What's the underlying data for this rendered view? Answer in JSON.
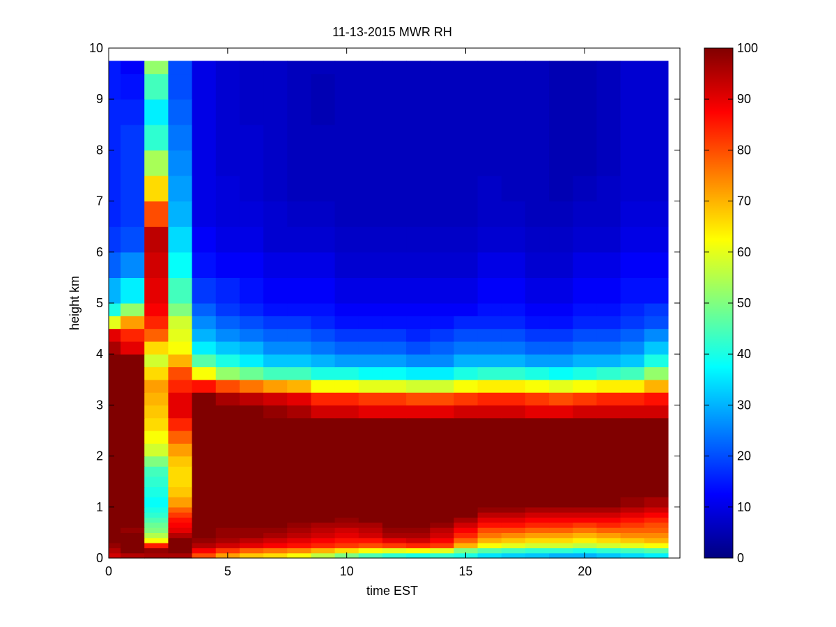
{
  "chart_data": {
    "type": "heatmap",
    "title": "11-13-2015 MWR RH",
    "xlabel": "time EST",
    "ylabel": "height km",
    "xlim": [
      0,
      24
    ],
    "ylim": [
      0,
      10
    ],
    "x_ticks": [
      0,
      5,
      10,
      15,
      20
    ],
    "y_ticks": [
      0,
      1,
      2,
      3,
      4,
      5,
      6,
      7,
      8,
      9,
      10
    ],
    "colorbar": {
      "colormap": "jet",
      "range": [
        0,
        100
      ],
      "ticks": [
        0,
        10,
        20,
        30,
        40,
        50,
        60,
        70,
        80,
        90,
        100
      ]
    },
    "x": [
      0,
      1,
      2,
      3,
      4,
      5,
      6,
      7,
      8,
      9,
      10,
      11,
      12,
      13,
      14,
      15,
      16,
      17,
      18,
      19,
      20,
      21,
      22,
      23
    ],
    "y_levels": [
      0,
      0.1,
      0.2,
      0.3,
      0.4,
      0.5,
      0.6,
      0.7,
      0.8,
      0.9,
      1.0,
      1.2,
      1.4,
      1.6,
      1.8,
      2.0,
      2.25,
      2.5,
      2.75,
      3.0,
      3.25,
      3.5,
      3.75,
      4.0,
      4.25,
      4.5,
      4.75,
      5.0,
      5.5,
      6.0,
      6.5,
      7.0,
      7.5,
      8.0,
      8.5,
      9.0,
      9.5
    ],
    "y_top": 9.75,
    "z": [
      [
        92,
        95,
        96,
        96,
        80,
        72,
        68,
        66,
        62,
        56,
        50,
        45,
        42,
        40,
        42,
        40,
        35,
        33,
        32,
        30,
        30,
        32,
        34,
        36
      ],
      [
        95,
        100,
        98,
        100,
        88,
        82,
        78,
        76,
        74,
        70,
        66,
        62,
        60,
        62,
        60,
        50,
        46,
        44,
        42,
        42,
        40,
        42,
        44,
        46
      ],
      [
        98,
        100,
        85,
        100,
        95,
        92,
        90,
        88,
        86,
        84,
        82,
        80,
        82,
        84,
        82,
        70,
        62,
        60,
        58,
        58,
        56,
        58,
        60,
        62
      ],
      [
        100,
        100,
        62,
        100,
        98,
        96,
        94,
        92,
        90,
        88,
        86,
        86,
        90,
        92,
        88,
        78,
        70,
        68,
        66,
        66,
        64,
        66,
        68,
        70
      ],
      [
        100,
        100,
        55,
        95,
        100,
        98,
        98,
        96,
        94,
        92,
        90,
        92,
        96,
        96,
        92,
        84,
        76,
        74,
        72,
        72,
        70,
        72,
        74,
        74
      ],
      [
        100,
        98,
        50,
        90,
        100,
        98,
        98,
        98,
        96,
        94,
        92,
        94,
        98,
        98,
        94,
        88,
        80,
        80,
        78,
        78,
        76,
        78,
        78,
        78
      ],
      [
        100,
        100,
        48,
        88,
        100,
        100,
        100,
        100,
        98,
        96,
        96,
        96,
        100,
        100,
        98,
        92,
        86,
        86,
        84,
        84,
        82,
        84,
        82,
        80
      ],
      [
        100,
        100,
        45,
        86,
        100,
        100,
        100,
        100,
        100,
        100,
        98,
        100,
        100,
        100,
        100,
        96,
        90,
        90,
        88,
        88,
        88,
        88,
        86,
        84
      ],
      [
        100,
        100,
        42,
        82,
        100,
        100,
        100,
        100,
        100,
        100,
        100,
        100,
        100,
        100,
        100,
        100,
        94,
        94,
        92,
        92,
        92,
        92,
        90,
        88
      ],
      [
        100,
        100,
        40,
        78,
        100,
        100,
        100,
        100,
        100,
        100,
        100,
        100,
        100,
        100,
        100,
        100,
        98,
        98,
        96,
        96,
        96,
        96,
        94,
        92
      ],
      [
        100,
        100,
        38,
        72,
        100,
        100,
        100,
        100,
        100,
        100,
        100,
        100,
        100,
        100,
        100,
        100,
        100,
        100,
        100,
        100,
        100,
        100,
        98,
        96
      ],
      [
        100,
        100,
        40,
        68,
        100,
        100,
        100,
        100,
        100,
        100,
        100,
        100,
        100,
        100,
        100,
        100,
        100,
        100,
        100,
        100,
        100,
        100,
        100,
        100
      ],
      [
        100,
        100,
        42,
        66,
        100,
        100,
        100,
        100,
        100,
        100,
        100,
        100,
        100,
        100,
        100,
        100,
        100,
        100,
        100,
        100,
        100,
        100,
        100,
        100
      ],
      [
        100,
        100,
        44,
        66,
        100,
        100,
        100,
        100,
        100,
        100,
        100,
        100,
        100,
        100,
        100,
        100,
        100,
        100,
        100,
        100,
        100,
        100,
        100,
        100
      ],
      [
        100,
        100,
        50,
        68,
        100,
        100,
        100,
        100,
        100,
        100,
        100,
        100,
        100,
        100,
        100,
        100,
        100,
        100,
        100,
        100,
        100,
        100,
        100,
        100
      ],
      [
        100,
        100,
        58,
        72,
        100,
        100,
        100,
        100,
        100,
        100,
        100,
        100,
        100,
        100,
        100,
        100,
        100,
        100,
        100,
        100,
        100,
        100,
        100,
        100
      ],
      [
        100,
        100,
        62,
        78,
        100,
        100,
        100,
        100,
        100,
        100,
        100,
        100,
        100,
        100,
        100,
        100,
        100,
        100,
        100,
        100,
        100,
        100,
        100,
        100
      ],
      [
        100,
        100,
        66,
        84,
        100,
        100,
        100,
        100,
        100,
        100,
        100,
        100,
        100,
        100,
        100,
        100,
        100,
        100,
        100,
        100,
        100,
        100,
        100,
        100
      ],
      [
        100,
        100,
        68,
        90,
        100,
        100,
        100,
        98,
        96,
        92,
        92,
        90,
        90,
        90,
        90,
        92,
        92,
        92,
        90,
        90,
        92,
        92,
        92,
        92
      ],
      [
        100,
        100,
        70,
        90,
        100,
        96,
        94,
        92,
        90,
        84,
        84,
        82,
        82,
        80,
        80,
        82,
        84,
        84,
        82,
        80,
        82,
        84,
        84,
        86
      ],
      [
        100,
        100,
        72,
        84,
        86,
        80,
        76,
        72,
        70,
        62,
        62,
        60,
        60,
        58,
        58,
        62,
        64,
        64,
        62,
        60,
        62,
        64,
        64,
        70
      ],
      [
        100,
        100,
        66,
        80,
        62,
        52,
        48,
        44,
        44,
        40,
        40,
        38,
        38,
        36,
        36,
        40,
        42,
        42,
        40,
        38,
        40,
        42,
        44,
        52
      ],
      [
        100,
        100,
        58,
        70,
        46,
        40,
        36,
        32,
        32,
        30,
        28,
        28,
        28,
        26,
        26,
        30,
        30,
        30,
        28,
        28,
        30,
        30,
        32,
        40
      ],
      [
        96,
        90,
        66,
        62,
        36,
        32,
        30,
        26,
        26,
        24,
        22,
        22,
        22,
        20,
        22,
        24,
        24,
        24,
        22,
        22,
        24,
        24,
        26,
        32
      ],
      [
        90,
        84,
        78,
        60,
        30,
        26,
        24,
        22,
        22,
        20,
        18,
        18,
        18,
        16,
        18,
        20,
        20,
        20,
        18,
        18,
        20,
        20,
        22,
        26
      ],
      [
        60,
        72,
        84,
        58,
        26,
        22,
        20,
        18,
        18,
        16,
        14,
        14,
        14,
        14,
        14,
        16,
        16,
        16,
        14,
        14,
        16,
        16,
        18,
        20
      ],
      [
        40,
        52,
        88,
        50,
        22,
        18,
        16,
        14,
        14,
        14,
        12,
        12,
        12,
        12,
        12,
        12,
        14,
        14,
        12,
        12,
        14,
        14,
        16,
        18
      ],
      [
        30,
        36,
        90,
        44,
        18,
        16,
        14,
        12,
        12,
        12,
        10,
        10,
        10,
        10,
        10,
        10,
        12,
        12,
        10,
        10,
        12,
        12,
        14,
        14
      ],
      [
        22,
        26,
        92,
        38,
        14,
        12,
        12,
        10,
        10,
        10,
        8,
        8,
        8,
        8,
        8,
        8,
        10,
        10,
        8,
        8,
        10,
        10,
        12,
        12
      ],
      [
        18,
        20,
        94,
        34,
        12,
        10,
        10,
        8,
        8,
        8,
        7,
        7,
        7,
        7,
        7,
        7,
        8,
        8,
        7,
        7,
        8,
        8,
        10,
        10
      ],
      [
        16,
        18,
        80,
        30,
        10,
        9,
        9,
        8,
        7,
        7,
        6,
        6,
        6,
        6,
        6,
        6,
        7,
        7,
        6,
        6,
        7,
        7,
        9,
        9
      ],
      [
        16,
        18,
        66,
        28,
        10,
        9,
        8,
        7,
        6,
        6,
        6,
        6,
        6,
        6,
        6,
        6,
        7,
        6,
        6,
        5,
        6,
        7,
        8,
        8
      ],
      [
        16,
        18,
        54,
        26,
        10,
        8,
        8,
        7,
        6,
        6,
        6,
        6,
        6,
        6,
        6,
        6,
        6,
        6,
        6,
        5,
        5,
        6,
        8,
        8
      ],
      [
        16,
        18,
        42,
        24,
        10,
        8,
        8,
        7,
        6,
        6,
        6,
        6,
        6,
        6,
        6,
        6,
        6,
        6,
        6,
        5,
        5,
        6,
        8,
        8
      ],
      [
        16,
        16,
        36,
        22,
        10,
        8,
        7,
        7,
        6,
        5,
        6,
        6,
        6,
        6,
        6,
        6,
        6,
        6,
        6,
        5,
        5,
        6,
        8,
        8
      ],
      [
        15,
        14,
        44,
        20,
        10,
        8,
        7,
        7,
        6,
        5,
        6,
        6,
        6,
        6,
        6,
        6,
        6,
        6,
        6,
        5,
        5,
        6,
        8,
        8
      ],
      [
        15,
        12,
        52,
        20,
        10,
        8,
        7,
        7,
        6,
        6,
        6,
        6,
        6,
        6,
        6,
        6,
        6,
        6,
        6,
        5,
        5,
        6,
        8,
        8
      ]
    ]
  }
}
